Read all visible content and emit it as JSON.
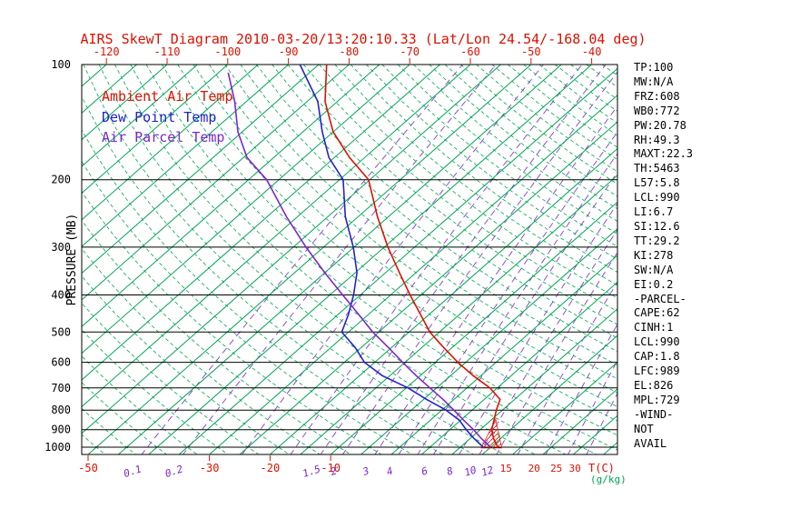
{
  "title": "AIRS SkewT Diagram 2010-03-20/13:20:10.33 (Lat/Lon 24.54/-168.04 deg)",
  "colors": {
    "red": "#dd1100",
    "green": "#00a651",
    "blue": "#2222cc",
    "purple": "#7d26cd",
    "black": "#000000"
  },
  "legend": {
    "items": [
      {
        "label": "Ambient Air Temp",
        "color_key": "red"
      },
      {
        "label": "Dew Point Temp",
        "color_key": "blue"
      },
      {
        "label": "Air Parcel Temp",
        "color_key": "purple"
      }
    ]
  },
  "stats_panel": {
    "lines": [
      "TP:100",
      "MW:N/A",
      "FRZ:608",
      "WB0:772",
      "PW:20.78",
      "RH:49.3",
      "MAXT:22.3",
      "TH:5463",
      "L57:5.8",
      "LCL:990",
      "LI:6.7",
      "SI:12.6",
      "TT:29.2",
      "KI:278",
      "SW:N/A",
      "EI:0.2",
      "-PARCEL-",
      "CAPE:62",
      "CINH:1",
      "LCL:990",
      "CAP:1.8",
      "LFC:989",
      "EL:826",
      "MPL:729",
      "-WIND-",
      "NOT",
      "AVAIL"
    ]
  },
  "axes": {
    "pressure_axis_label": "PRESSURE (MB)",
    "pressure_ticks": [
      100,
      200,
      300,
      400,
      500,
      600,
      700,
      800,
      900,
      1000
    ],
    "top_temperature_ticks": [
      -120,
      -110,
      -100,
      -90,
      -80,
      -70,
      -60,
      -50,
      -40
    ],
    "bottom_temperature_ticks": [
      -50,
      -30,
      -20,
      -10
    ],
    "temperature_unit_label": "T(C)",
    "mixing_ratio_unit_label": "(g/kg)",
    "mixing_ratio_tick_labels_purple": [
      0.1,
      0.2,
      1.5,
      2,
      3,
      4,
      6,
      8,
      10,
      12
    ],
    "mixing_ratio_tick_labels_red": [
      15,
      20,
      25,
      30
    ]
  },
  "chart_data": {
    "type": "skewt-log-p",
    "pressure_range_mb": [
      100,
      1050
    ],
    "surface_temperature_axis_range_c": [
      -50,
      37
    ],
    "isotherm_step_c": 5,
    "dry_adiabat_step_c": 5,
    "mixing_ratio_lines_g_per_kg": [
      0.1,
      0.2,
      0.5,
      1,
      1.5,
      2,
      3,
      4,
      5,
      6,
      8,
      10,
      12,
      15,
      20,
      25,
      30
    ],
    "series": [
      {
        "name": "Ambient Air Temp",
        "color_key": "red",
        "points": [
          {
            "p": 100,
            "t": -83.7
          },
          {
            "p": 125,
            "t": -77.0
          },
          {
            "p": 150,
            "t": -70.0
          },
          {
            "p": 175,
            "t": -62.5
          },
          {
            "p": 200,
            "t": -55.2
          },
          {
            "p": 250,
            "t": -46.8
          },
          {
            "p": 300,
            "t": -39.4
          },
          {
            "p": 350,
            "t": -32.7
          },
          {
            "p": 400,
            "t": -26.8
          },
          {
            "p": 450,
            "t": -21.4
          },
          {
            "p": 500,
            "t": -16.6
          },
          {
            "p": 550,
            "t": -11.3
          },
          {
            "p": 600,
            "t": -6.3
          },
          {
            "p": 650,
            "t": -1.3
          },
          {
            "p": 700,
            "t": 3.8
          },
          {
            "p": 750,
            "t": 7.6
          },
          {
            "p": 800,
            "t": 9.0
          },
          {
            "p": 850,
            "t": 10.5
          },
          {
            "p": 900,
            "t": 11.9
          },
          {
            "p": 950,
            "t": 13.9
          },
          {
            "p": 1000,
            "t": 16.2
          }
        ]
      },
      {
        "name": "Dew Point Temp",
        "color_key": "blue",
        "points": [
          {
            "p": 100,
            "t": -88.1
          },
          {
            "p": 125,
            "t": -78.2
          },
          {
            "p": 150,
            "t": -71.8
          },
          {
            "p": 175,
            "t": -65.9
          },
          {
            "p": 200,
            "t": -59.4
          },
          {
            "p": 250,
            "t": -52.1
          },
          {
            "p": 300,
            "t": -45.1
          },
          {
            "p": 350,
            "t": -39.7
          },
          {
            "p": 400,
            "t": -36.1
          },
          {
            "p": 450,
            "t": -33.3
          },
          {
            "p": 500,
            "t": -31.1
          },
          {
            "p": 550,
            "t": -25.9
          },
          {
            "p": 600,
            "t": -21.7
          },
          {
            "p": 650,
            "t": -16.3
          },
          {
            "p": 700,
            "t": -9.7
          },
          {
            "p": 750,
            "t": -4.5
          },
          {
            "p": 800,
            "t": 0.7
          },
          {
            "p": 850,
            "t": 4.8
          },
          {
            "p": 900,
            "t": 7.7
          },
          {
            "p": 950,
            "t": 10.7
          },
          {
            "p": 1000,
            "t": 13.8
          }
        ]
      },
      {
        "name": "Air Parcel Temp",
        "color_key": "purple",
        "points": [
          {
            "p": 105,
            "t": -98.4
          },
          {
            "p": 125,
            "t": -91.9
          },
          {
            "p": 150,
            "t": -85.7
          },
          {
            "p": 175,
            "t": -79.4
          },
          {
            "p": 200,
            "t": -72.0
          },
          {
            "p": 250,
            "t": -61.8
          },
          {
            "p": 300,
            "t": -52.9
          },
          {
            "p": 350,
            "t": -45.0
          },
          {
            "p": 400,
            "t": -37.9
          },
          {
            "p": 450,
            "t": -31.6
          },
          {
            "p": 500,
            "t": -26.0
          },
          {
            "p": 550,
            "t": -20.4
          },
          {
            "p": 600,
            "t": -15.4
          },
          {
            "p": 650,
            "t": -10.7
          },
          {
            "p": 700,
            "t": -6.1
          },
          {
            "p": 750,
            "t": -1.8
          },
          {
            "p": 800,
            "t": 2.0
          },
          {
            "p": 850,
            "t": 5.5
          },
          {
            "p": 900,
            "t": 8.9
          },
          {
            "p": 950,
            "t": 11.9
          },
          {
            "p": 1000,
            "t": 15.0
          }
        ]
      }
    ],
    "cape_hatch_polygon": [
      {
        "p": 1005,
        "t": 13.6
      },
      {
        "p": 1005,
        "t": 17.0
      },
      {
        "p": 845,
        "t": 10.6
      }
    ]
  }
}
